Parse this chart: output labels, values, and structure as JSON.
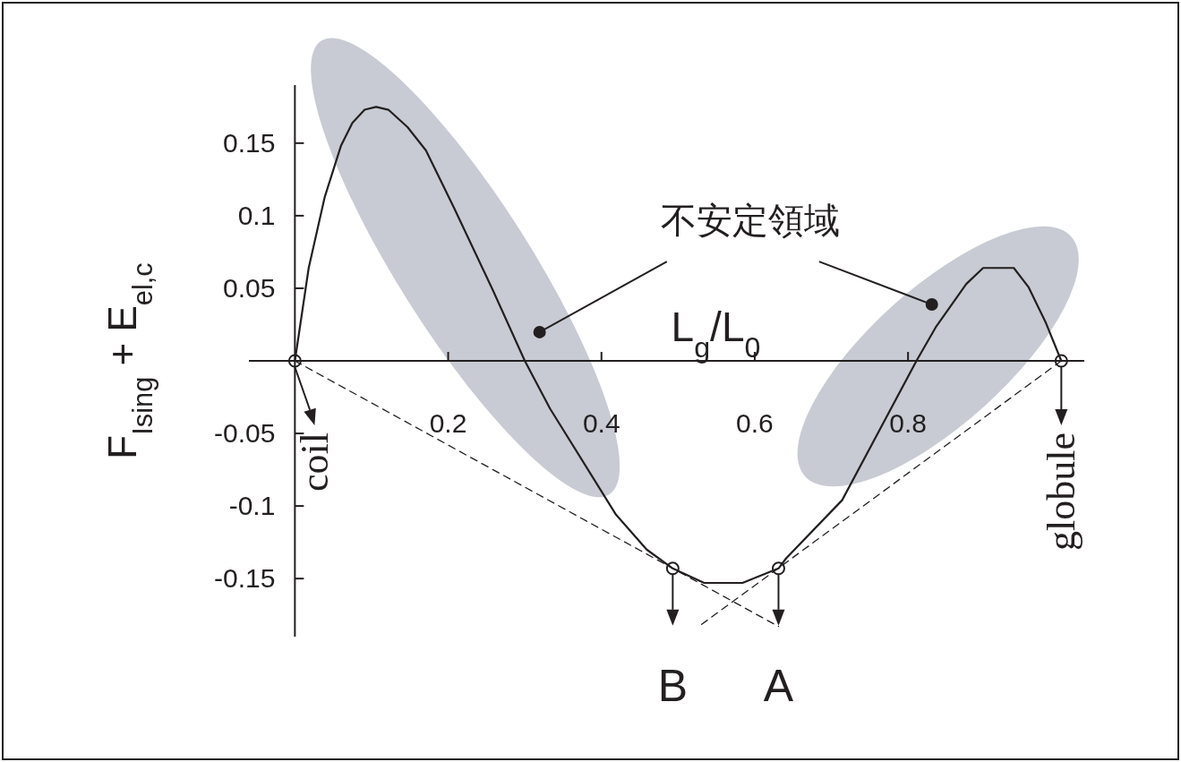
{
  "chart_data": {
    "type": "line",
    "xlabel": "L$_{g}$/L$_{0}$",
    "ylabel": "F$_{Ising}$ + E$_{el,c}$",
    "xlim": [
      -0.06,
      1.03
    ],
    "ylim": [
      -0.19,
      0.19
    ],
    "xticks": [
      0.2,
      0.4,
      0.6,
      0.8
    ],
    "yticks": [
      -0.15,
      -0.1,
      -0.05,
      0.05,
      0.1,
      0.15
    ],
    "series": [
      {
        "type": "line",
        "color": "#231f20",
        "line_style": "solid",
        "x": [
          0,
          0.018,
          0.039,
          0.06,
          0.075,
          0.091,
          0.106,
          0.122,
          0.147,
          0.171,
          0.208,
          0.258,
          0.3,
          0.333,
          0.419,
          0.459,
          0.493,
          0.534,
          0.584,
          0.631,
          0.641,
          0.714,
          0.811,
          0.836,
          0.876,
          0.898,
          0.938,
          0.957,
          0.98,
          1
        ],
        "values": [
          0,
          0.064,
          0.113,
          0.148,
          0.164,
          0.173,
          0.175,
          0.173,
          0.161,
          0.145,
          0.105,
          0.049,
          0,
          -0.033,
          -0.106,
          -0.13,
          -0.143,
          -0.153,
          -0.153,
          -0.143,
          -0.136,
          -0.096,
          0,
          0.023,
          0.053,
          0.064,
          0.064,
          0.051,
          0.026,
          0
        ]
      },
      {
        "type": "line",
        "color": "#231f20",
        "line_style": "dashed",
        "x": [
          0,
          0.631
        ],
        "values": [
          0,
          -0.183
        ]
      },
      {
        "type": "line",
        "color": "#231f20",
        "line_style": "dashed",
        "x": [
          1,
          0.527
        ],
        "values": [
          0,
          -0.183
        ]
      },
      {
        "type": "scatter",
        "color": "#231f20",
        "marker": "circle",
        "x": [
          0,
          0.493,
          0.631,
          1
        ],
        "values": [
          0,
          -0.143,
          -0.143,
          0
        ]
      }
    ],
    "annotations": [
      "不安定領域",
      {
        "text": "coil",
        "x": 0,
        "y": 0
      },
      {
        "text": "B",
        "x": 0.493,
        "y": -0.143
      },
      {
        "text": "A",
        "x": 0.631,
        "y": -0.143
      },
      {
        "text": "globule",
        "x": 1,
        "y": 0
      }
    ]
  }
}
